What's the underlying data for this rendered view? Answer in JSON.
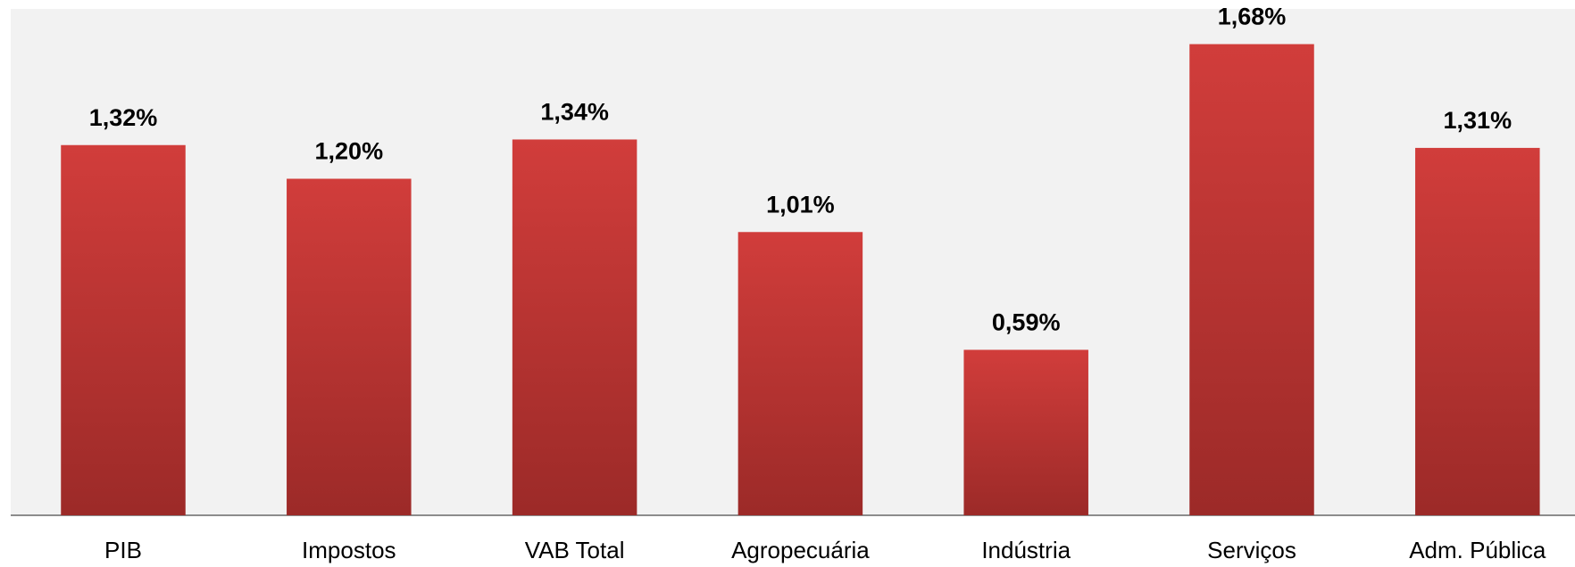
{
  "chart_data": {
    "type": "bar",
    "categories": [
      "PIB",
      "Impostos",
      "VAB Total",
      "Agropecuária",
      "Indústria",
      "Serviços",
      "Adm. Pública"
    ],
    "values": [
      1.32,
      1.2,
      1.34,
      1.01,
      0.59,
      1.68,
      1.31
    ],
    "value_labels": [
      "1,32%",
      "1,20%",
      "1,34%",
      "1,01%",
      "0,59%",
      "1,68%",
      "1,31%"
    ],
    "color": "#d13d3b"
  }
}
